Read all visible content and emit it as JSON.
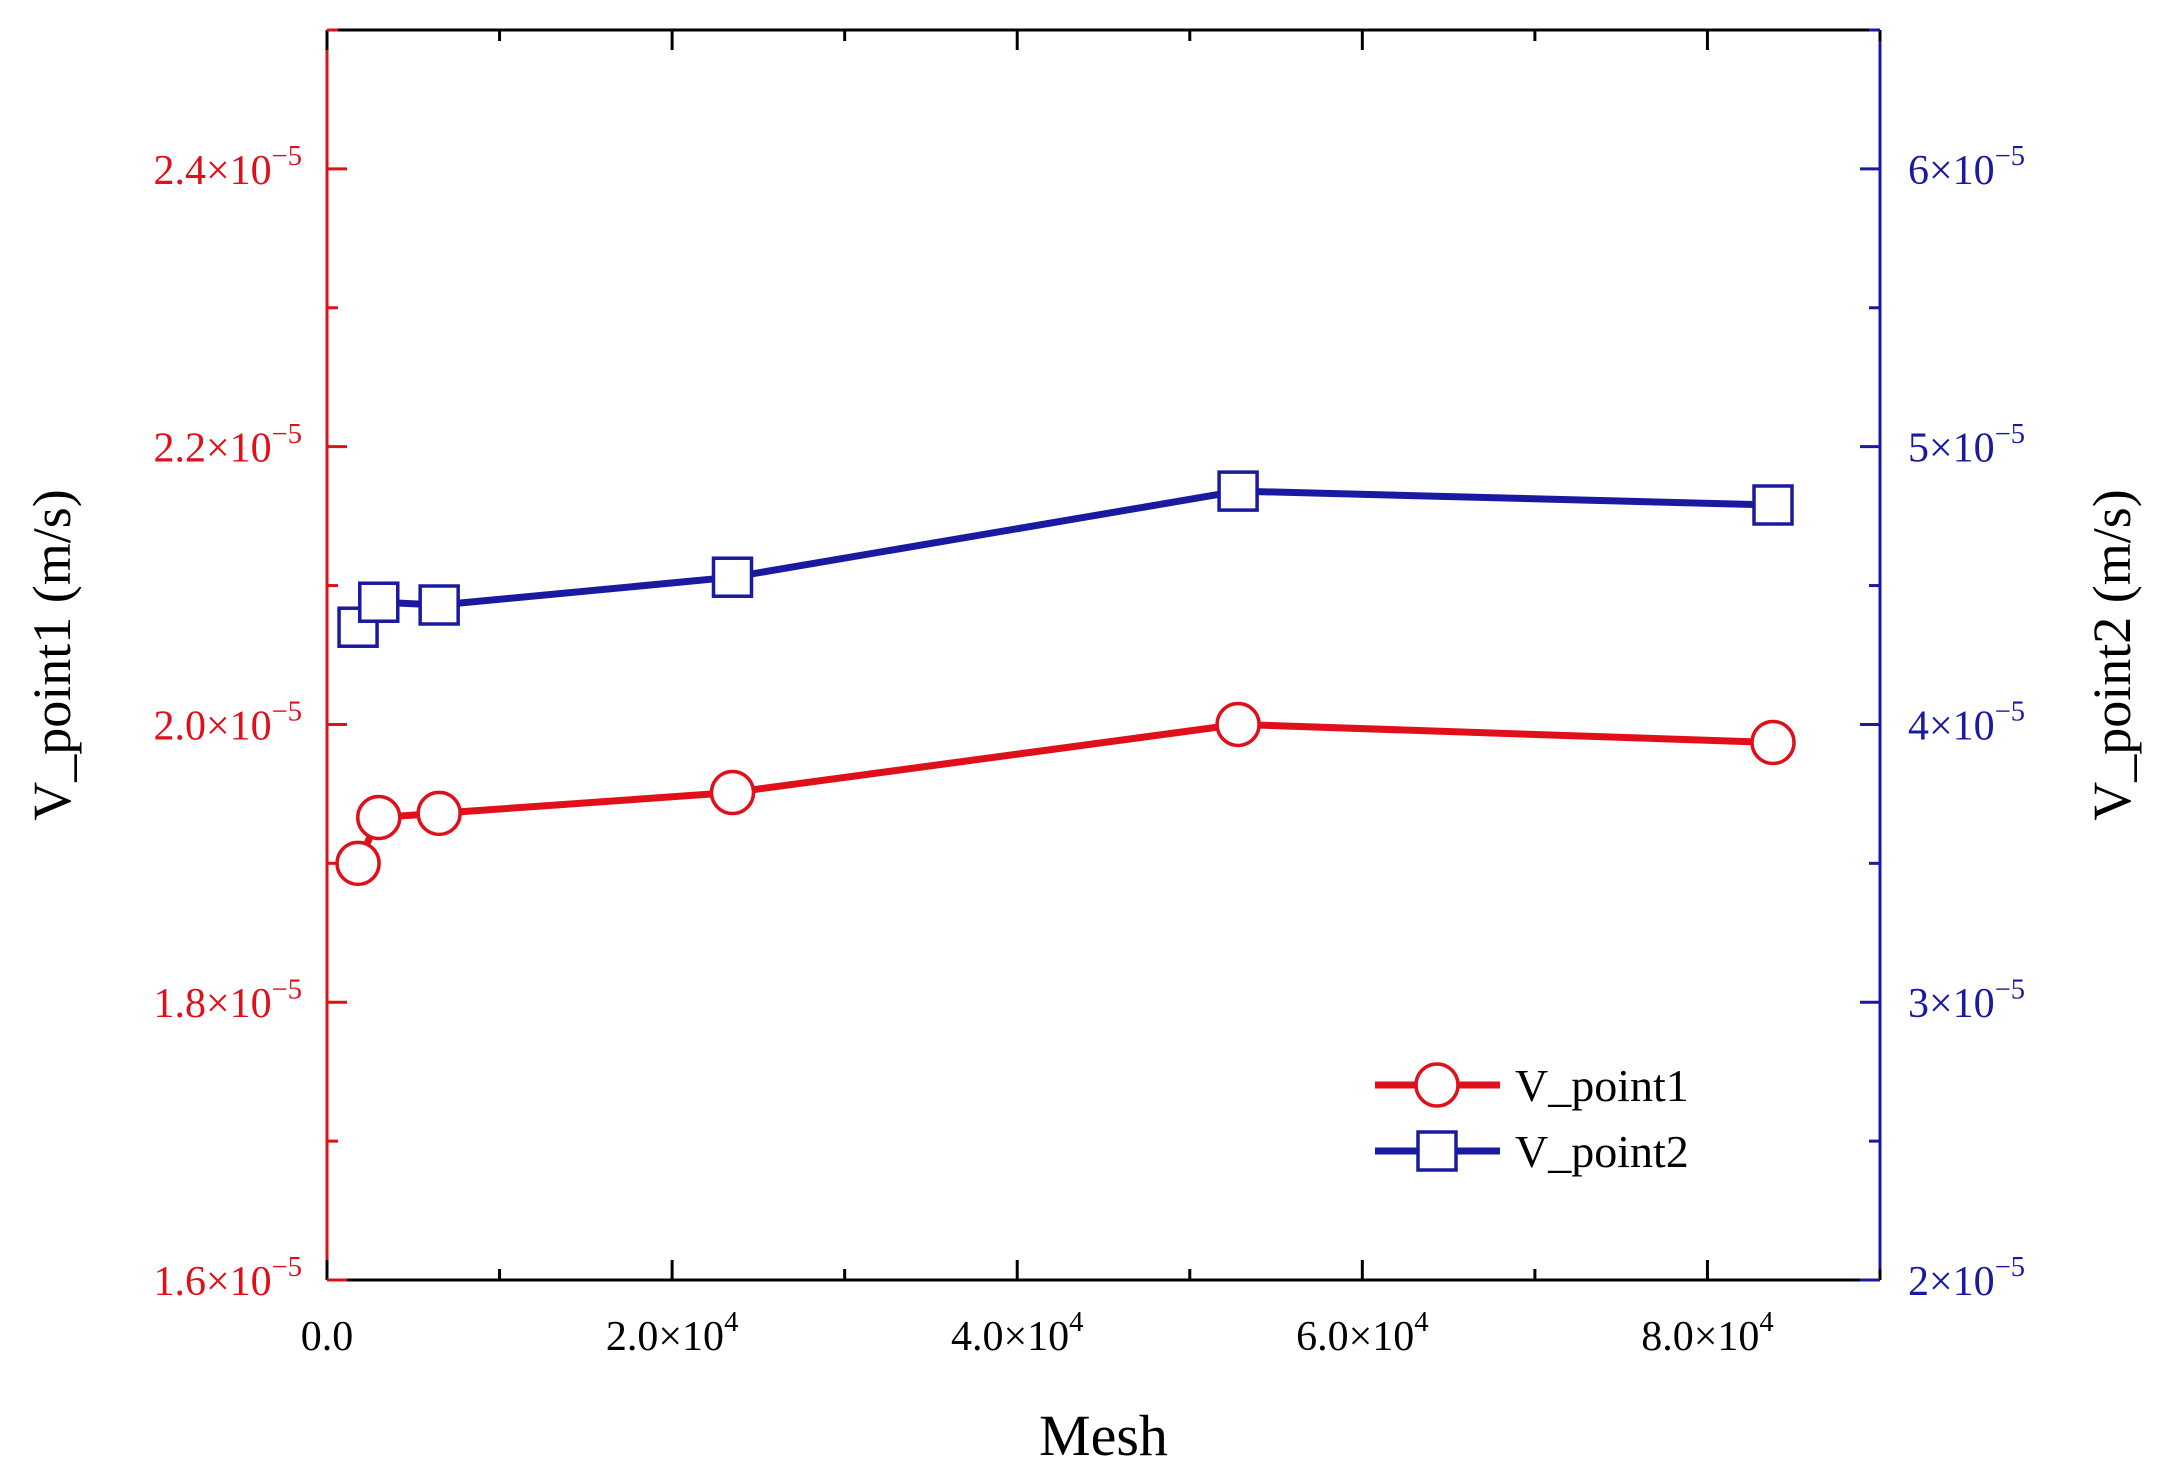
{
  "chart_data": {
    "type": "line",
    "x": [
      1800,
      3000,
      6500,
      23500,
      52800,
      83800
    ],
    "xlabel": "Mesh",
    "xlim": [
      0,
      90000
    ],
    "x_ticks": [
      {
        "value": 0,
        "mantissa": "0.0",
        "exp": ""
      },
      {
        "value": 20000,
        "mantissa": "2.0×10",
        "exp": "4"
      },
      {
        "value": 40000,
        "mantissa": "4.0×10",
        "exp": "4"
      },
      {
        "value": 60000,
        "mantissa": "6.0×10",
        "exp": "4"
      },
      {
        "value": 80000,
        "mantissa": "8.0×10",
        "exp": "4"
      }
    ],
    "y_left": {
      "label": "V_point1 (m/s)",
      "ylim": [
        1.6e-05,
        2.5e-05
      ],
      "color": "#e0101a",
      "ticks": [
        {
          "value": 1.6e-05,
          "mantissa": "1.6×10",
          "exp": "−5"
        },
        {
          "value": 1.8e-05,
          "mantissa": "1.8×10",
          "exp": "−5"
        },
        {
          "value": 2e-05,
          "mantissa": "2.0×10",
          "exp": "−5"
        },
        {
          "value": 2.2e-05,
          "mantissa": "2.2×10",
          "exp": "−5"
        },
        {
          "value": 2.4e-05,
          "mantissa": "2.4×10",
          "exp": "−5"
        }
      ]
    },
    "y_right": {
      "label": "V_point2 (m/s)",
      "ylim": [
        2e-05,
        6.5e-05
      ],
      "color": "#1a1aa0",
      "ticks": [
        {
          "value": 2e-05,
          "mantissa": "2×10",
          "exp": "−5"
        },
        {
          "value": 3e-05,
          "mantissa": "3×10",
          "exp": "−5"
        },
        {
          "value": 4e-05,
          "mantissa": "4×10",
          "exp": "−5"
        },
        {
          "value": 5e-05,
          "mantissa": "5×10",
          "exp": "−5"
        },
        {
          "value": 6e-05,
          "mantissa": "6×10",
          "exp": "−5"
        }
      ]
    },
    "series": [
      {
        "name": "V_point1",
        "axis": "left",
        "marker": "circle",
        "color": "#e0101a",
        "values": [
          1.9e-05,
          1.933e-05,
          1.936e-05,
          1.951e-05,
          2e-05,
          1.987e-05
        ]
      },
      {
        "name": "V_point2",
        "axis": "right",
        "marker": "square",
        "color": "#1a1aa0",
        "values": [
          4.35e-05,
          4.44e-05,
          4.43e-05,
          4.53e-05,
          4.84e-05,
          4.79e-05
        ]
      }
    ],
    "legend_position": "bottom-right",
    "grid": false
  }
}
